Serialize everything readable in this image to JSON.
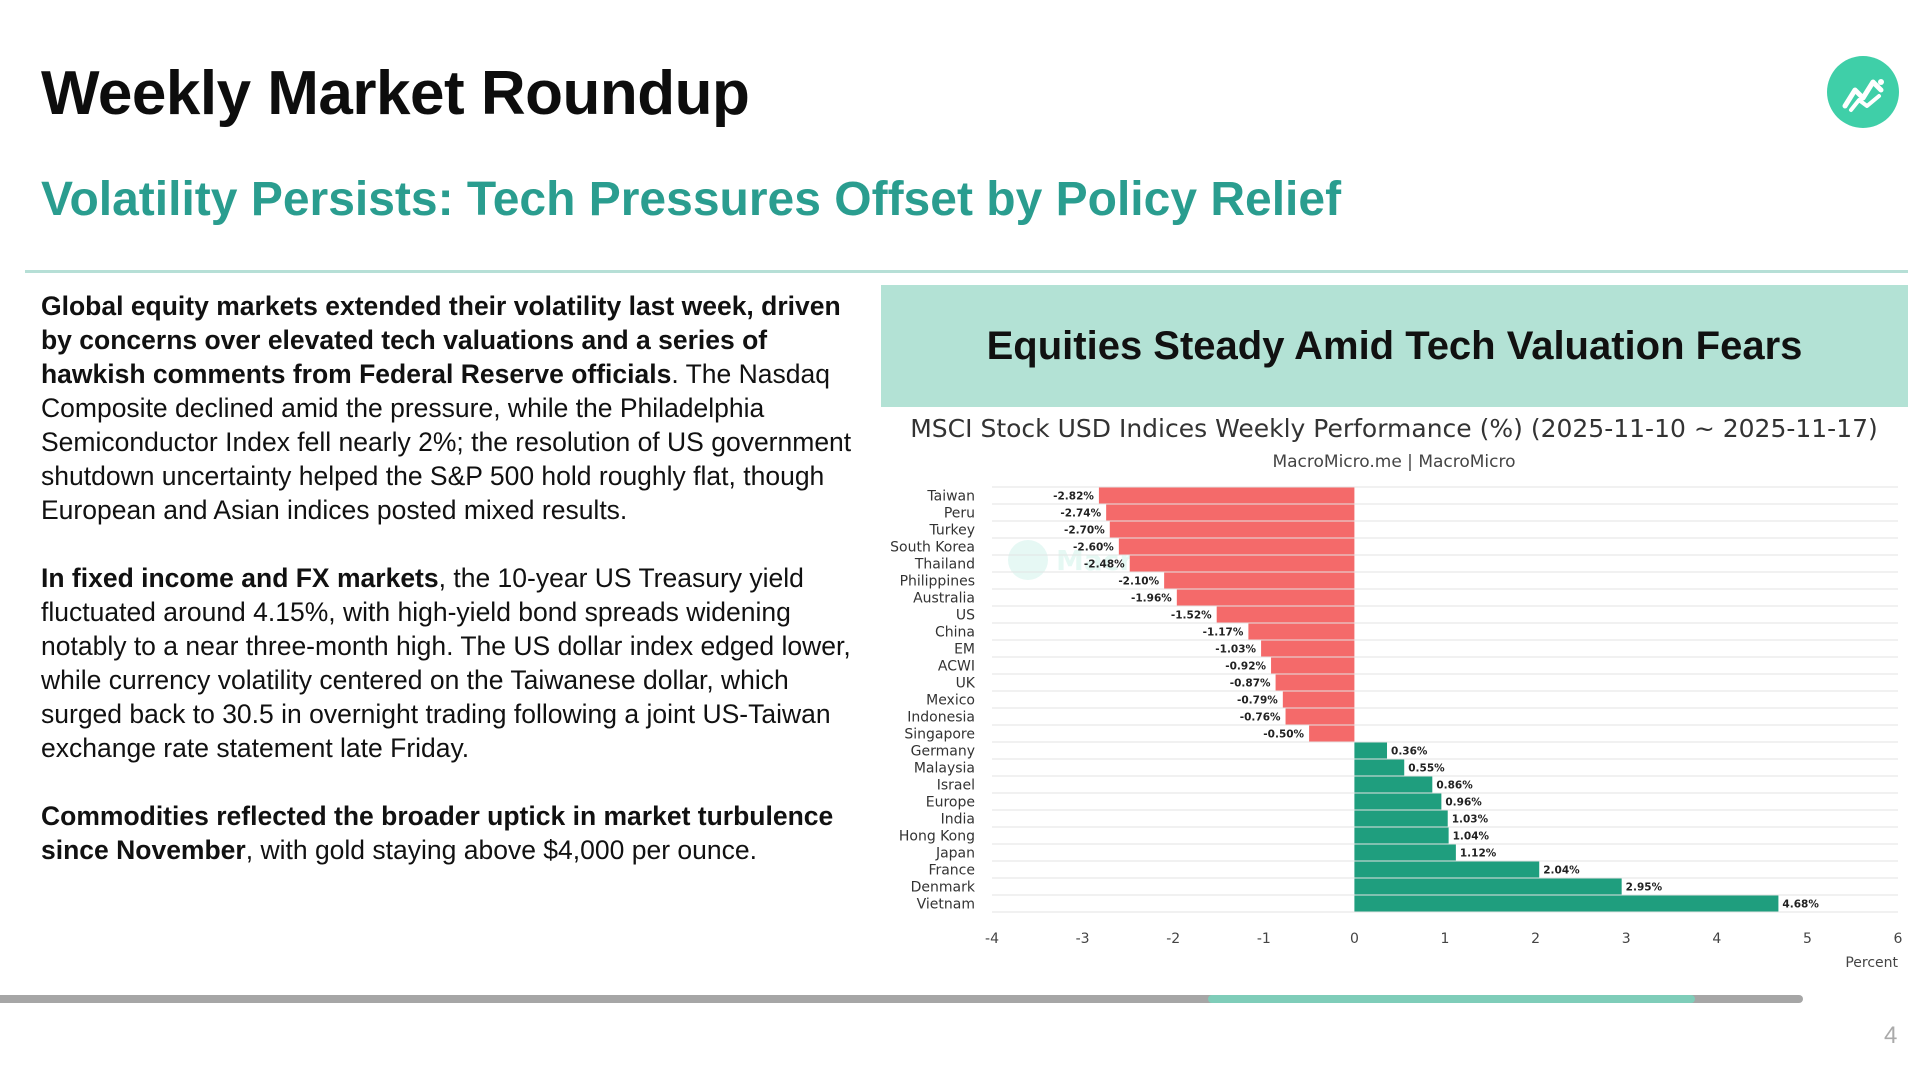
{
  "header": {
    "title": "Weekly Market Roundup",
    "subtitle": "Volatility Persists: Tech Pressures Offset by Policy Relief"
  },
  "body": {
    "p1_bold": "Global equity markets extended their volatility last week, driven by concerns over elevated tech valuations and a series of hawkish comments from Federal Reserve officials",
    "p1_rest": ". The Nasdaq Composite declined amid the pressure, while the Philadelphia Semiconductor Index fell nearly 2%; the resolution of US government shutdown uncertainty helped the S&P 500 hold roughly flat, though European and Asian indices posted mixed results.",
    "p2_bold": "In fixed income and FX markets",
    "p2_rest": ", the 10-year US Treasury yield fluctuated around 4.15%, with high-yield bond spreads widening notably to a near three-month high. The US dollar index edged lower, while currency volatility centered on the Taiwanese dollar, which surged back to 30.5 in overnight trading following a joint US-Taiwan exchange rate statement late Friday.",
    "p3_bold": "Commodities reflected the broader uptick in market turbulence since November",
    "p3_rest": ", with gold staying above $4,000 per ounce."
  },
  "chart_banner": "Equities Steady Amid Tech Valuation Fears",
  "chart_data": {
    "type": "bar",
    "orientation": "horizontal",
    "title": "MSCI Stock USD Indices Weekly Performance (%) (2025-11-10 ~ 2025-11-17)",
    "subtitle": "MacroMicro.me | MacroMicro",
    "watermark": "MacroMicro",
    "xlabel": "Percent",
    "xlim": [
      -4,
      6
    ],
    "xticks": [
      -4,
      -3,
      -2,
      -1,
      0,
      1,
      2,
      3,
      4,
      5,
      6
    ],
    "grid": true,
    "categories": [
      "Taiwan",
      "Peru",
      "Turkey",
      "South Korea",
      "Thailand",
      "Philippines",
      "Australia",
      "US",
      "China",
      "EM",
      "ACWI",
      "UK",
      "Mexico",
      "Indonesia",
      "Singapore",
      "Germany",
      "Malaysia",
      "Israel",
      "Europe",
      "India",
      "Hong Kong",
      "Japan",
      "France",
      "Denmark",
      "Vietnam"
    ],
    "values": [
      -2.82,
      -2.74,
      -2.7,
      -2.6,
      -2.48,
      -2.1,
      -1.96,
      -1.52,
      -1.17,
      -1.03,
      -0.92,
      -0.87,
      -0.79,
      -0.76,
      -0.5,
      0.36,
      0.55,
      0.86,
      0.96,
      1.03,
      1.04,
      1.12,
      2.04,
      2.95,
      4.68
    ],
    "value_labels": [
      "-2.82%",
      "-2.74%",
      "-2.70%",
      "-2.60%",
      "-2.48%",
      "-2.10%",
      "-1.96%",
      "-1.52%",
      "-1.17%",
      "-1.03%",
      "-0.92%",
      "-0.87%",
      "-0.79%",
      "-0.76%",
      "-0.50%",
      "0.36%",
      "0.55%",
      "0.86%",
      "0.96%",
      "1.03%",
      "1.04%",
      "1.12%",
      "2.04%",
      "2.95%",
      "4.68%"
    ],
    "colors": {
      "negative": "#f46a6a",
      "positive": "#1f9e7e",
      "grid": "#e3e3e3"
    }
  },
  "footer": {
    "progress": 0.94,
    "progress_start": 0.67,
    "page_number": "4"
  },
  "colors": {
    "accent": "#2a9d8f",
    "banner": "#b3e2d5",
    "logo": "#3fcfa8"
  },
  "icons": {
    "logo": "trend-line-chart-icon"
  }
}
